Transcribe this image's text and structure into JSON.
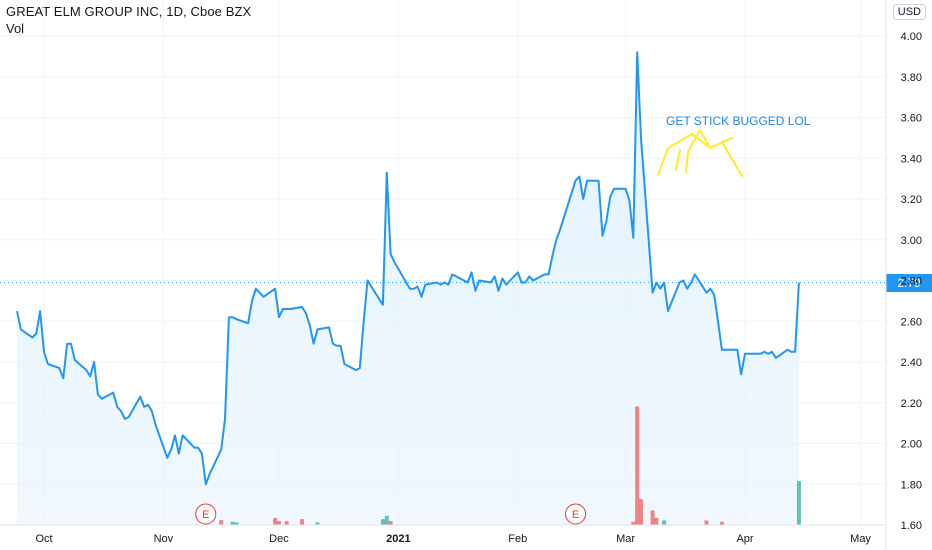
{
  "header": {
    "title": "GREAT ELM GROUP INC, 1D, Cboe BZX",
    "volume_label": "Vol",
    "currency": "USD"
  },
  "colors": {
    "line": "#2196f3",
    "area_fill": "#e3f2fd",
    "volume_up": "#26a69a",
    "volume_down": "#ef5350",
    "grid": "#f0f3fa",
    "earnings": "#e53935",
    "annotation": "#ffeb3b"
  },
  "chart_data": {
    "type": "area",
    "title": "GREAT ELM GROUP INC, 1D, Cboe BZX",
    "xlabel": "",
    "ylabel": "",
    "ylim": [
      1.55,
      4.05
    ],
    "grid": true,
    "start_date": "2020-09-24",
    "end_date": "2021-05-11",
    "x_tick_labels": [
      {
        "date": "2020-10-01",
        "label": "Oct",
        "bold": false
      },
      {
        "date": "2020-11-01",
        "label": "Nov",
        "bold": false
      },
      {
        "date": "2020-12-01",
        "label": "Dec",
        "bold": false
      },
      {
        "date": "2021-01-01",
        "label": "2021",
        "bold": true
      },
      {
        "date": "2021-02-01",
        "label": "Feb",
        "bold": false
      },
      {
        "date": "2021-03-01",
        "label": "Mar",
        "bold": false
      },
      {
        "date": "2021-04-01",
        "label": "Apr",
        "bold": false
      },
      {
        "date": "2021-05-01",
        "label": "May",
        "bold": false
      }
    ],
    "y_ticks": [
      1.6,
      1.8,
      2.0,
      2.2,
      2.4,
      2.6,
      2.8,
      3.0,
      3.2,
      3.4,
      3.6,
      3.8,
      4.0
    ],
    "last_price": 2.79,
    "last_price_label": "2.79",
    "series": [
      {
        "values": [
          [
            "2020-09-24",
            2.65
          ],
          [
            "2020-09-25",
            2.56
          ],
          [
            "2020-09-28",
            2.52
          ],
          [
            "2020-09-29",
            2.54
          ],
          [
            "2020-09-30",
            2.65
          ],
          [
            "2020-10-01",
            2.45
          ],
          [
            "2020-10-02",
            2.39
          ],
          [
            "2020-10-05",
            2.37
          ],
          [
            "2020-10-06",
            2.32
          ],
          [
            "2020-10-07",
            2.49
          ],
          [
            "2020-10-08",
            2.49
          ],
          [
            "2020-10-09",
            2.41
          ],
          [
            "2020-10-12",
            2.36
          ],
          [
            "2020-10-13",
            2.33
          ],
          [
            "2020-10-14",
            2.4
          ],
          [
            "2020-10-15",
            2.24
          ],
          [
            "2020-10-16",
            2.22
          ],
          [
            "2020-10-19",
            2.25
          ],
          [
            "2020-10-20",
            2.18
          ],
          [
            "2020-10-21",
            2.16
          ],
          [
            "2020-10-22",
            2.12
          ],
          [
            "2020-10-23",
            2.13
          ],
          [
            "2020-10-26",
            2.23
          ],
          [
            "2020-10-27",
            2.18
          ],
          [
            "2020-10-28",
            2.19
          ],
          [
            "2020-10-29",
            2.16
          ],
          [
            "2020-10-30",
            2.09
          ],
          [
            "2020-11-02",
            1.93
          ],
          [
            "2020-11-03",
            1.97
          ],
          [
            "2020-11-04",
            2.04
          ],
          [
            "2020-11-05",
            1.95
          ],
          [
            "2020-11-06",
            2.04
          ],
          [
            "2020-11-09",
            1.98
          ],
          [
            "2020-11-10",
            1.98
          ],
          [
            "2020-11-11",
            1.95
          ],
          [
            "2020-11-12",
            1.8
          ],
          [
            "2020-11-13",
            1.85
          ],
          [
            "2020-11-16",
            1.97
          ],
          [
            "2020-11-17",
            2.12
          ],
          [
            "2020-11-18",
            2.62
          ],
          [
            "2020-11-19",
            2.62
          ],
          [
            "2020-11-20",
            2.61
          ],
          [
            "2020-11-23",
            2.59
          ],
          [
            "2020-11-24",
            2.7
          ],
          [
            "2020-11-25",
            2.76
          ],
          [
            "2020-11-27",
            2.72
          ],
          [
            "2020-11-30",
            2.76
          ],
          [
            "2020-12-01",
            2.62
          ],
          [
            "2020-12-02",
            2.66
          ],
          [
            "2020-12-03",
            2.66
          ],
          [
            "2020-12-04",
            2.66
          ],
          [
            "2020-12-07",
            2.67
          ],
          [
            "2020-12-08",
            2.64
          ],
          [
            "2020-12-09",
            2.58
          ],
          [
            "2020-12-10",
            2.49
          ],
          [
            "2020-12-11",
            2.56
          ],
          [
            "2020-12-14",
            2.57
          ],
          [
            "2020-12-15",
            2.49
          ],
          [
            "2020-12-16",
            2.48
          ],
          [
            "2020-12-17",
            2.48
          ],
          [
            "2020-12-18",
            2.39
          ],
          [
            "2020-12-21",
            2.36
          ],
          [
            "2020-12-22",
            2.37
          ],
          [
            "2020-12-23",
            2.6
          ],
          [
            "2020-12-24",
            2.8
          ],
          [
            "2020-12-28",
            2.68
          ],
          [
            "2020-12-29",
            3.33
          ],
          [
            "2020-12-30",
            2.93
          ],
          [
            "2020-12-31",
            2.89
          ],
          [
            "2021-01-04",
            2.76
          ],
          [
            "2021-01-05",
            2.76
          ],
          [
            "2021-01-06",
            2.77
          ],
          [
            "2021-01-07",
            2.72
          ],
          [
            "2021-01-08",
            2.78
          ],
          [
            "2021-01-11",
            2.79
          ],
          [
            "2021-01-12",
            2.78
          ],
          [
            "2021-01-13",
            2.79
          ],
          [
            "2021-01-14",
            2.78
          ],
          [
            "2021-01-15",
            2.83
          ],
          [
            "2021-01-19",
            2.79
          ],
          [
            "2021-01-20",
            2.84
          ],
          [
            "2021-01-21",
            2.75
          ],
          [
            "2021-01-22",
            2.8
          ],
          [
            "2021-01-25",
            2.79
          ],
          [
            "2021-01-26",
            2.82
          ],
          [
            "2021-01-27",
            2.75
          ],
          [
            "2021-01-28",
            2.81
          ],
          [
            "2021-01-29",
            2.78
          ],
          [
            "2021-02-01",
            2.84
          ],
          [
            "2021-02-02",
            2.79
          ],
          [
            "2021-02-03",
            2.79
          ],
          [
            "2021-02-04",
            2.82
          ],
          [
            "2021-02-05",
            2.8
          ],
          [
            "2021-02-08",
            2.83
          ],
          [
            "2021-02-09",
            2.83
          ],
          [
            "2021-02-10",
            2.92
          ],
          [
            "2021-02-11",
            3.0
          ],
          [
            "2021-02-12",
            3.05
          ],
          [
            "2021-02-16",
            3.29
          ],
          [
            "2021-02-17",
            3.31
          ],
          [
            "2021-02-18",
            3.2
          ],
          [
            "2021-02-19",
            3.29
          ],
          [
            "2021-02-22",
            3.29
          ],
          [
            "2021-02-23",
            3.02
          ],
          [
            "2021-02-24",
            3.09
          ],
          [
            "2021-02-25",
            3.21
          ],
          [
            "2021-02-26",
            3.25
          ],
          [
            "2021-03-01",
            3.25
          ],
          [
            "2021-03-02",
            3.19
          ],
          [
            "2021-03-03",
            3.01
          ],
          [
            "2021-03-04",
            3.92
          ],
          [
            "2021-03-05",
            3.5
          ],
          [
            "2021-03-08",
            2.74
          ],
          [
            "2021-03-09",
            2.79
          ],
          [
            "2021-03-10",
            2.76
          ],
          [
            "2021-03-11",
            2.79
          ],
          [
            "2021-03-12",
            2.65
          ],
          [
            "2021-03-15",
            2.79
          ],
          [
            "2021-03-16",
            2.8
          ],
          [
            "2021-03-17",
            2.76
          ],
          [
            "2021-03-18",
            2.79
          ],
          [
            "2021-03-19",
            2.83
          ],
          [
            "2021-03-22",
            2.74
          ],
          [
            "2021-03-23",
            2.76
          ],
          [
            "2021-03-24",
            2.73
          ],
          [
            "2021-03-25",
            2.6
          ],
          [
            "2021-03-26",
            2.46
          ],
          [
            "2021-03-29",
            2.46
          ],
          [
            "2021-03-30",
            2.46
          ],
          [
            "2021-03-31",
            2.34
          ],
          [
            "2021-04-01",
            2.44
          ],
          [
            "2021-04-05",
            2.44
          ],
          [
            "2021-04-06",
            2.45
          ],
          [
            "2021-04-07",
            2.44
          ],
          [
            "2021-04-08",
            2.45
          ],
          [
            "2021-04-09",
            2.42
          ],
          [
            "2021-04-12",
            2.46
          ],
          [
            "2021-04-13",
            2.45
          ],
          [
            "2021-04-14",
            2.45
          ],
          [
            "2021-04-15",
            2.79
          ]
        ]
      }
    ],
    "volume_bars": [
      [
        "2020-11-16",
        0.15,
        "down"
      ],
      [
        "2020-11-19",
        0.1,
        "up"
      ],
      [
        "2020-11-20",
        0.08,
        "up"
      ],
      [
        "2020-11-30",
        0.22,
        "down"
      ],
      [
        "2020-12-01",
        0.12,
        "down"
      ],
      [
        "2020-12-03",
        0.12,
        "down"
      ],
      [
        "2020-12-07",
        0.18,
        "down"
      ],
      [
        "2020-12-11",
        0.08,
        "up"
      ],
      [
        "2020-12-28",
        0.18,
        "up"
      ],
      [
        "2020-12-29",
        0.28,
        "up"
      ],
      [
        "2020-12-30",
        0.12,
        "down"
      ],
      [
        "2021-03-03",
        0.1,
        "down"
      ],
      [
        "2021-03-04",
        3.65,
        "down"
      ],
      [
        "2021-03-05",
        0.8,
        "down"
      ],
      [
        "2021-03-08",
        0.45,
        "down"
      ],
      [
        "2021-03-09",
        0.22,
        "down"
      ],
      [
        "2021-03-11",
        0.14,
        "up"
      ],
      [
        "2021-03-22",
        0.14,
        "down"
      ],
      [
        "2021-03-26",
        0.1,
        "down"
      ],
      [
        "2021-04-15",
        1.35,
        "up"
      ]
    ],
    "earnings_markers": [
      {
        "date": "2020-11-12",
        "label": "E"
      },
      {
        "date": "2021-02-16",
        "label": "E"
      }
    ],
    "annotation": "GET STICK BUGGED LOL"
  }
}
